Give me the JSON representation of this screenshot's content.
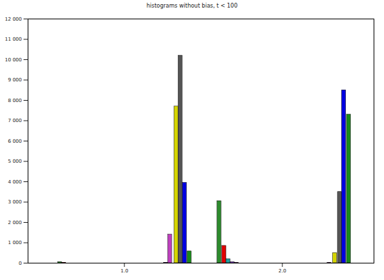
{
  "chart_data": {
    "type": "bar",
    "title": "histograms without bias, t < 100",
    "xlim": [
      0.39,
      2.58
    ],
    "xticks": [
      1,
      2
    ],
    "ylim": [
      0,
      12000
    ],
    "yticks": [
      0,
      {
        "value": 1000,
        "label": "1 000"
      },
      {
        "value": 2000,
        "label": "2 000"
      },
      {
        "value": 3000,
        "label": "3 000"
      },
      {
        "value": 4000,
        "label": "4 000"
      },
      {
        "value": 5000,
        "label": "5 000"
      },
      {
        "value": 6000,
        "label": "6 000"
      },
      {
        "value": 7000,
        "label": "7 000"
      },
      {
        "value": 8000,
        "label": "8 000"
      },
      {
        "value": 9000,
        "label": "9 000"
      },
      {
        "value": 10000,
        "label": "10 000"
      },
      {
        "value": 11000,
        "label": "11 000"
      },
      {
        "value": 12000,
        "label": "12 000"
      }
    ],
    "grid": false,
    "series": [
      {
        "color": "#2e8b2e",
        "x": [
          0.592,
          1.601
        ],
        "values": [
          50,
          3050
        ]
      },
      {
        "color": "#e00000",
        "x": [
          0.618,
          1.632
        ],
        "values": [
          20,
          850
        ]
      },
      {
        "color": "#20a0a0",
        "x": [
          1.658
        ],
        "values": [
          200
        ]
      },
      {
        "color": "#8040c0",
        "x": [
          1.263,
          1.684
        ],
        "values": [
          20,
          50
        ]
      },
      {
        "color": "#c040c0",
        "x": [
          1.289,
          1.711,
          2.298
        ],
        "values": [
          1400,
          20,
          20
        ]
      },
      {
        "color": "#d4d400",
        "x": [
          1.329,
          2.333
        ],
        "values": [
          7700,
          500
        ]
      },
      {
        "color": "#555555",
        "x": [
          1.355,
          2.364
        ],
        "values": [
          10200,
          3500
        ]
      },
      {
        "color": "#0000e0",
        "x": [
          1.382,
          2.39
        ],
        "values": [
          3950,
          8500
        ]
      },
      {
        "color": "#1a8a1a",
        "x": [
          1.412,
          2.421
        ],
        "values": [
          580,
          7300
        ]
      }
    ]
  }
}
